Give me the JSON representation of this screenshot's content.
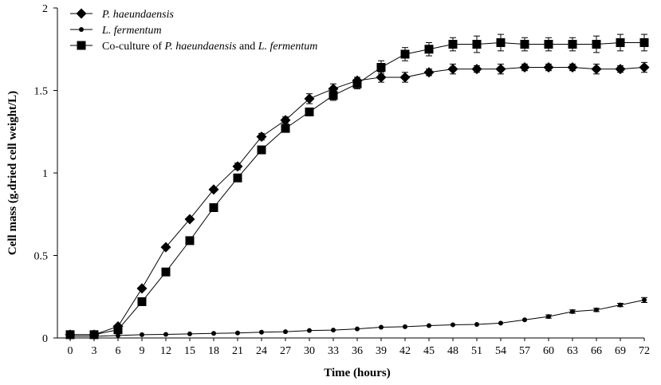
{
  "chart_data": {
    "type": "line",
    "title": "",
    "xlabel": "Time (hours)",
    "ylabel": "Cell mass (g.dried cell weight/L)",
    "x": [
      0,
      3,
      6,
      9,
      12,
      15,
      18,
      21,
      24,
      27,
      30,
      33,
      36,
      39,
      42,
      45,
      48,
      51,
      54,
      57,
      60,
      63,
      66,
      69,
      72
    ],
    "xlim": [
      0,
      72
    ],
    "ylim": [
      0,
      2
    ],
    "xticks": [
      "0",
      "3",
      "6",
      "9",
      "12",
      "15",
      "18",
      "21",
      "24",
      "27",
      "30",
      "33",
      "36",
      "39",
      "42",
      "45",
      "48",
      "51",
      "54",
      "57",
      "60",
      "63",
      "66",
      "69",
      "72"
    ],
    "yticks": [
      "0",
      "0.5",
      "1",
      "1.5",
      "2"
    ],
    "grid": false,
    "legend_position": "top-left",
    "series": [
      {
        "name": "P. haeundaensis",
        "marker": "diamond",
        "values": [
          0.02,
          0.02,
          0.07,
          0.3,
          0.55,
          0.72,
          0.9,
          1.04,
          1.22,
          1.32,
          1.45,
          1.51,
          1.56,
          1.58,
          1.58,
          1.61,
          1.63,
          1.63,
          1.63,
          1.64,
          1.64,
          1.64,
          1.63,
          1.63,
          1.64
        ],
        "errors": [
          0,
          0,
          0,
          0,
          0,
          0,
          0,
          0.02,
          0.02,
          0.02,
          0.03,
          0.03,
          0.02,
          0.03,
          0.03,
          0.02,
          0.03,
          0.02,
          0.03,
          0.02,
          0.02,
          0.02,
          0.03,
          0.02,
          0.03
        ]
      },
      {
        "name": "L. fermentum",
        "marker": "circle",
        "values": [
          0.01,
          0.01,
          0.015,
          0.02,
          0.022,
          0.025,
          0.028,
          0.03,
          0.035,
          0.038,
          0.045,
          0.048,
          0.055,
          0.065,
          0.068,
          0.075,
          0.08,
          0.082,
          0.09,
          0.11,
          0.13,
          0.16,
          0.17,
          0.2,
          0.23
        ],
        "errors": [
          0,
          0,
          0,
          0,
          0,
          0,
          0,
          0,
          0,
          0,
          0,
          0,
          0,
          0,
          0,
          0,
          0,
          0,
          0,
          0,
          0.01,
          0.01,
          0.01,
          0.01,
          0.015
        ]
      },
      {
        "name": "Co-culture of P. haeundaensis and L. fermentum",
        "marker": "square",
        "values": [
          0.02,
          0.02,
          0.05,
          0.22,
          0.4,
          0.59,
          0.79,
          0.97,
          1.14,
          1.27,
          1.37,
          1.47,
          1.54,
          1.64,
          1.72,
          1.75,
          1.78,
          1.78,
          1.79,
          1.78,
          1.78,
          1.78,
          1.78,
          1.79,
          1.79
        ],
        "errors": [
          0,
          0,
          0,
          0,
          0,
          0,
          0,
          0,
          0,
          0.02,
          0.02,
          0.03,
          0.03,
          0.04,
          0.04,
          0.04,
          0.04,
          0.05,
          0.05,
          0.04,
          0.04,
          0.04,
          0.05,
          0.05,
          0.05
        ]
      }
    ],
    "legend": [
      {
        "parts": [
          {
            "text": "P. haeundaensis",
            "italic": true
          }
        ]
      },
      {
        "parts": [
          {
            "text": "L. fermentum",
            "italic": true
          }
        ]
      },
      {
        "parts": [
          {
            "text": "Co-culture of ",
            "italic": false
          },
          {
            "text": "P. haeundaensis",
            "italic": true
          },
          {
            "text": " and ",
            "italic": false
          },
          {
            "text": "L. fermentum",
            "italic": true
          }
        ]
      }
    ]
  }
}
